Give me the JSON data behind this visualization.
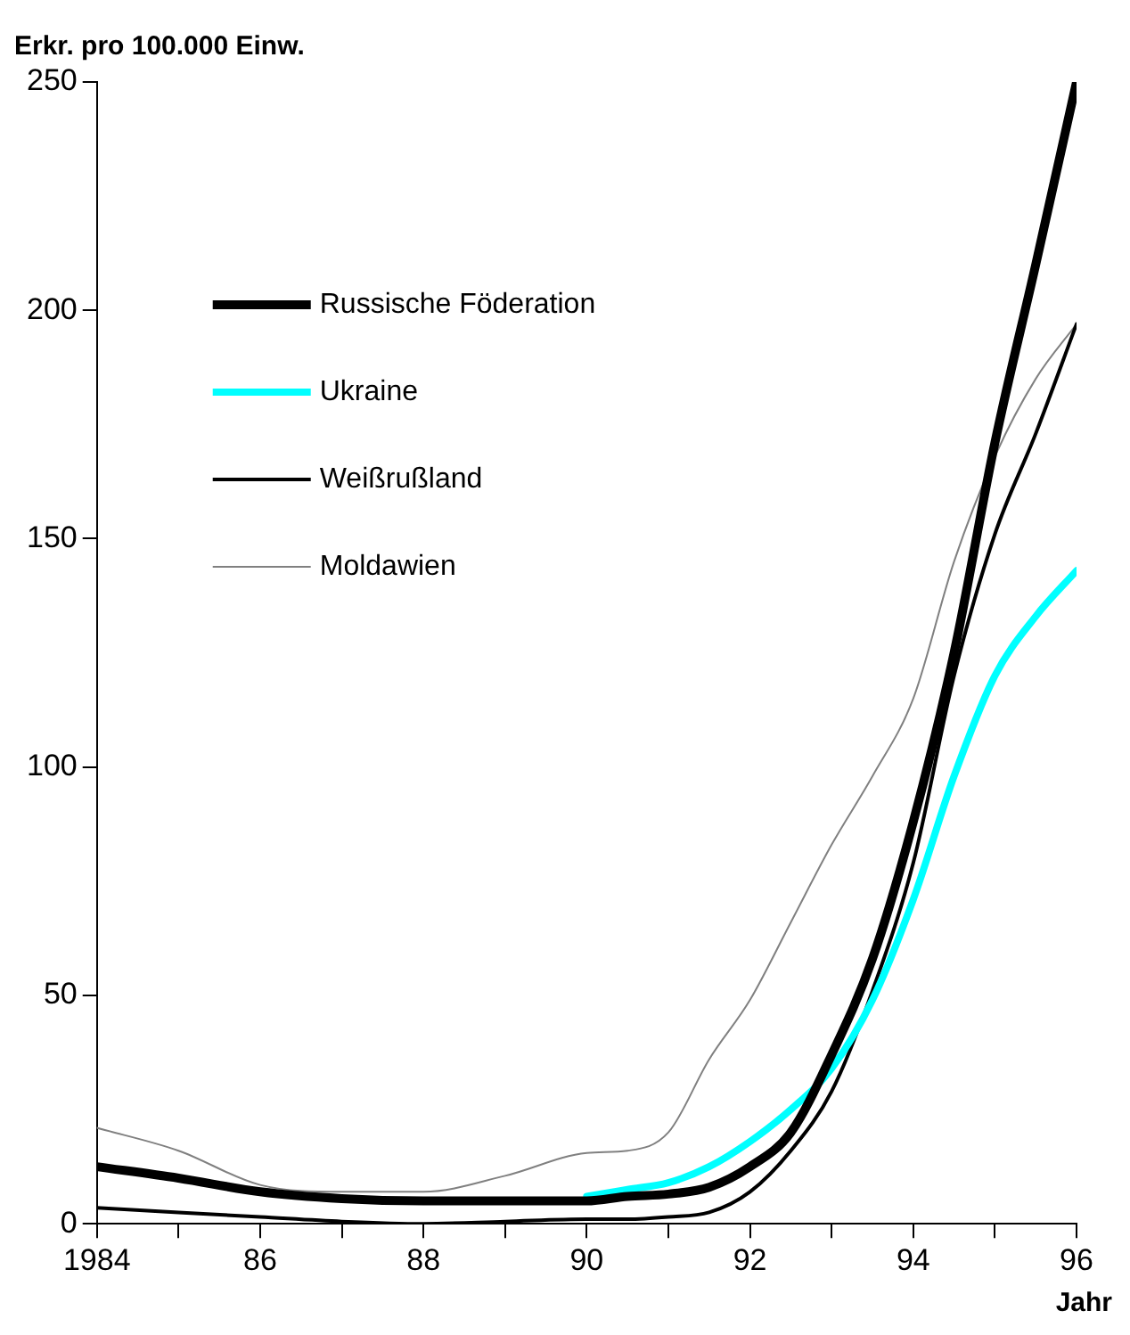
{
  "chart_data": {
    "type": "line",
    "ylabel": "Erkr. pro 100.000 Einw.",
    "xlabel": "Jahr",
    "xlim": [
      1984,
      1996
    ],
    "xticks": [
      1984,
      {
        "value": 1985,
        "label": null
      },
      {
        "value": 1986,
        "label": "86"
      },
      {
        "value": 1987,
        "label": null
      },
      {
        "value": 1988,
        "label": "88"
      },
      {
        "value": 1989,
        "label": null
      },
      {
        "value": 1990,
        "label": "90"
      },
      {
        "value": 1991,
        "label": null
      },
      {
        "value": 1992,
        "label": "92"
      },
      {
        "value": 1993,
        "label": null
      },
      {
        "value": 1994,
        "label": "94"
      },
      {
        "value": 1995,
        "label": null
      },
      {
        "value": 1996,
        "label": "96"
      }
    ],
    "ylim": [
      0,
      250
    ],
    "yticks": [
      0,
      50,
      100,
      150,
      200,
      250
    ],
    "grid": false,
    "legend": "top left",
    "marker": "none",
    "line_style": "solid",
    "series": [
      {
        "name": "Russische Föderation",
        "color": "#000000",
        "x": [
          1984,
          1985,
          1986,
          1987,
          1988,
          1989,
          1990,
          1990.5,
          1991,
          1991.5,
          1992,
          1992.5,
          1993,
          1993.5,
          1994,
          1994.5,
          1995,
          1995.5,
          1996
        ],
        "values": [
          12.5,
          10,
          7,
          5.5,
          5,
          5,
          5,
          6,
          6.5,
          8,
          12.5,
          20,
          37,
          58,
          88,
          125,
          171,
          210,
          250
        ]
      },
      {
        "name": "Ukraine",
        "color": "#00ffff",
        "x": [
          1990,
          1990.5,
          1991,
          1991.5,
          1992,
          1992.5,
          1993,
          1993.5,
          1994,
          1994.5,
          1995,
          1995.5,
          1996
        ],
        "values": [
          6,
          7.5,
          9,
          12.5,
          18,
          25,
          34,
          49,
          71,
          98,
          120,
          133,
          143
        ]
      },
      {
        "name": "Weißrußland",
        "color": "#000000",
        "x": [
          1984,
          1985,
          1986,
          1987,
          1988,
          1989,
          1990,
          1990.5,
          1991,
          1991.5,
          1992,
          1992.5,
          1993,
          1993.5,
          1994,
          1994.5,
          1995,
          1995.5,
          1996
        ],
        "values": [
          3.5,
          2.5,
          1.5,
          0.5,
          0,
          0.5,
          1,
          1,
          1.5,
          2.5,
          7,
          16,
          29,
          51,
          79,
          120,
          151,
          173,
          197
        ]
      },
      {
        "name": "Moldawien",
        "color": "#808080",
        "x": [
          1984,
          1985,
          1986,
          1987,
          1988,
          1989,
          1990,
          1990.5,
          1991,
          1991.5,
          1992,
          1992.5,
          1993,
          1993.5,
          1994,
          1994.5,
          1995,
          1995.5,
          1996
        ],
        "values": [
          21,
          16,
          8.5,
          7,
          7,
          10.5,
          15.5,
          16,
          20,
          36,
          49,
          66,
          83,
          98,
          115,
          145,
          168,
          185,
          197
        ]
      }
    ]
  }
}
